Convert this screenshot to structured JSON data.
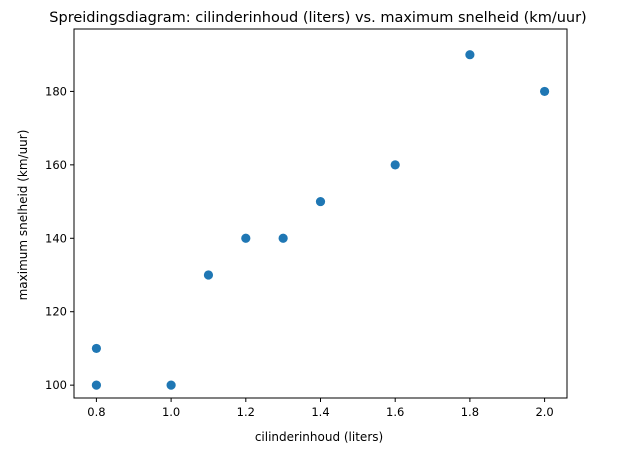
{
  "chart_data": {
    "type": "scatter",
    "title": "Spreidingsdiagram: cilinderinhoud (liters) vs. maximum snelheid (km/uur)",
    "xlabel": "cilinderinhoud (liters)",
    "ylabel": "maximum snelheid (km/uur)",
    "xlim": [
      0.74,
      2.06
    ],
    "ylim": [
      96.5,
      197
    ],
    "xticks": [
      0.8,
      1.0,
      1.2,
      1.4,
      1.6,
      1.8,
      2.0
    ],
    "xtick_labels": [
      "0.8",
      "1.0",
      "1.2",
      "1.4",
      "1.6",
      "1.8",
      "2.0"
    ],
    "yticks": [
      100,
      120,
      140,
      160,
      180
    ],
    "ytick_labels": [
      "100",
      "120",
      "140",
      "160",
      "180"
    ],
    "grid": false,
    "marker_color": "#1f77b4",
    "points": [
      {
        "x": 0.8,
        "y": 110
      },
      {
        "x": 0.8,
        "y": 100
      },
      {
        "x": 1.0,
        "y": 100
      },
      {
        "x": 1.1,
        "y": 130
      },
      {
        "x": 1.2,
        "y": 140
      },
      {
        "x": 1.3,
        "y": 140
      },
      {
        "x": 1.4,
        "y": 150
      },
      {
        "x": 1.6,
        "y": 160
      },
      {
        "x": 1.8,
        "y": 190
      },
      {
        "x": 2.0,
        "y": 180
      }
    ]
  }
}
